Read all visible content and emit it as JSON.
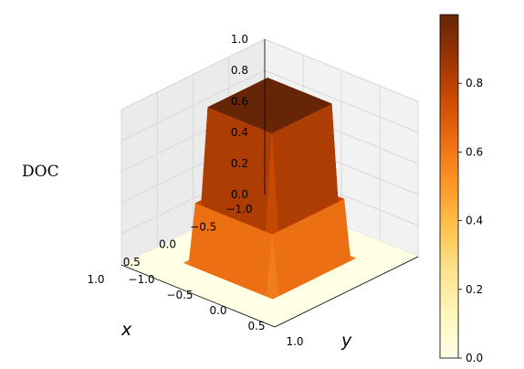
{
  "chart_data": {
    "type": "surface",
    "z_axis_label": "DOC",
    "x_axis_label": "y",
    "y_axis_label": "x",
    "x_ticks": [
      "−1.0",
      "−0.5",
      "0.0",
      "0.5",
      "1.0"
    ],
    "y_ticks": [
      "−1.0",
      "−0.5",
      "0.0",
      "0.5",
      "1.0"
    ],
    "z_ticks": [
      "0.0",
      "0.2",
      "0.4",
      "0.6",
      "0.8",
      "1.0"
    ],
    "x_range": [
      -1.0,
      1.0
    ],
    "y_range": [
      -1.0,
      1.0
    ],
    "z_range": [
      0.0,
      1.0
    ],
    "colorbar": {
      "ticks": [
        "0.0",
        "0.2",
        "0.4",
        "0.6",
        "0.8"
      ],
      "range": [
        0.0,
        1.0
      ],
      "colormap": "YlOrBr",
      "colors": [
        "#ffffe5",
        "#fff7bc",
        "#fee391",
        "#fec44f",
        "#fe9929",
        "#ec7014",
        "#cc4c02",
        "#993404",
        "#662506"
      ]
    },
    "grid": true,
    "surface_description": "Plateau of value ~1.0 over region |x|,|y| < ~0.5, falling steeply to 0 elsewhere"
  }
}
